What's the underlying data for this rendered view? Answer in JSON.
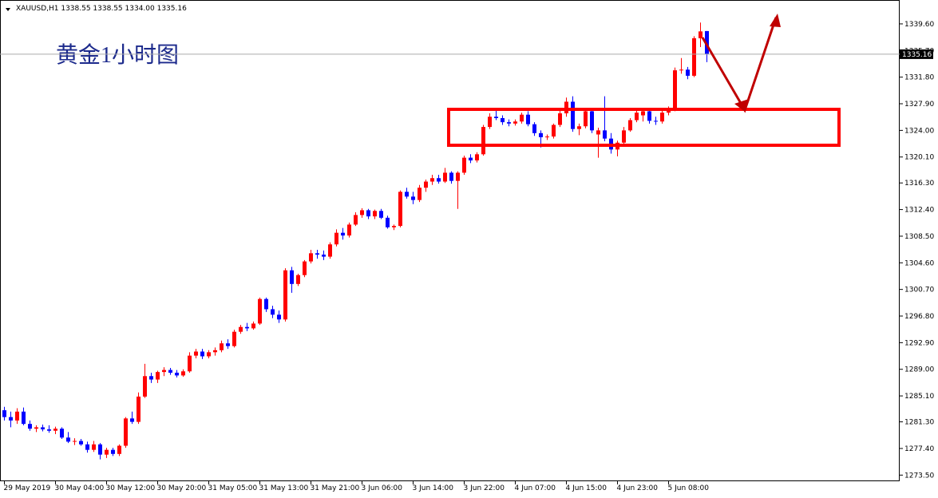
{
  "chart_data": {
    "type": "candlestick",
    "info": "XAUUSD,H1  1338.55 1338.55 1334.00 1335.16",
    "annotation": "黄金1小时图",
    "up_color": "#ff0000",
    "down_color": "#0000ff",
    "last_price": 1335.16,
    "ylim": [
      1272.6,
      1343.1
    ],
    "yticks": [
      {
        "value": 1273.5,
        "label": "1273.50"
      },
      {
        "value": 1277.4,
        "label": "1277.40"
      },
      {
        "value": 1281.3,
        "label": "1281.30"
      },
      {
        "value": 1285.1,
        "label": "1285.10"
      },
      {
        "value": 1289,
        "label": "1289.00"
      },
      {
        "value": 1292.9,
        "label": "1292.90"
      },
      {
        "value": 1296.8,
        "label": "1296.80"
      },
      {
        "value": 1300.7,
        "label": "1300.70"
      },
      {
        "value": 1304.6,
        "label": "1304.60"
      },
      {
        "value": 1308.5,
        "label": "1308.50"
      },
      {
        "value": 1312.4,
        "label": "1312.40"
      },
      {
        "value": 1316.3,
        "label": "1316.30"
      },
      {
        "value": 1320.1,
        "label": "1320.10"
      },
      {
        "value": 1324,
        "label": "1324.00"
      },
      {
        "value": 1327.9,
        "label": "1327.90"
      },
      {
        "value": 1331.8,
        "label": "1331.80"
      },
      {
        "value": 1335.7,
        "label": "1335.70"
      },
      {
        "value": 1339.6,
        "label": "1339.60"
      }
    ],
    "categories": [
      "29 May 2019",
      null,
      null,
      null,
      null,
      null,
      null,
      null,
      "30 May 04:00",
      null,
      null,
      null,
      null,
      null,
      null,
      null,
      "30 May 12:00",
      null,
      null,
      null,
      null,
      null,
      null,
      null,
      "30 May 20:00",
      null,
      null,
      null,
      null,
      null,
      null,
      null,
      "31 May 05:00",
      null,
      null,
      null,
      null,
      null,
      null,
      null,
      "31 May 13:00",
      null,
      null,
      null,
      null,
      null,
      null,
      null,
      "31 May 21:00",
      null,
      null,
      null,
      null,
      null,
      null,
      null,
      "3 Jun 06:00",
      null,
      null,
      null,
      null,
      null,
      null,
      null,
      "3 Jun 14:00",
      null,
      null,
      null,
      null,
      null,
      null,
      null,
      "3 Jun 22:00",
      null,
      null,
      null,
      null,
      null,
      null,
      null,
      "4 Jun 07:00",
      null,
      null,
      null,
      null,
      null,
      null,
      null,
      "4 Jun 15:00",
      null,
      null,
      null,
      null,
      null,
      null,
      null,
      "4 Jun 23:00",
      null,
      null,
      null,
      null,
      null,
      null,
      null,
      "5 Jun 08:00",
      null,
      null,
      null,
      null,
      null,
      null
    ],
    "open": [
      1283.0,
      1282.0,
      1281.5,
      1282.8,
      1281.0,
      1280.3,
      1280.5,
      1280.2,
      1280.0,
      1280.3,
      1279.0,
      1278.4,
      1278.5,
      1278.0,
      1277.2,
      1278.0,
      1276.5,
      1277.2,
      1276.6,
      1277.8,
      1281.8,
      1281.3,
      1285.0,
      1288.0,
      1287.5,
      1288.6,
      1288.9,
      1288.5,
      1288.1,
      1288.7,
      1291.0,
      1291.6,
      1290.9,
      1291.5,
      1291.8,
      1292.8,
      1292.4,
      1294.5,
      1295.2,
      1295.0,
      1295.7,
      1299.3,
      1297.8,
      1297.0,
      1296.3,
      1303.5,
      1301.5,
      1302.8,
      1304.8,
      1306.0,
      1305.8,
      1305.5,
      1307.3,
      1309.0,
      1308.6,
      1310.2,
      1311.6,
      1312.3,
      1311.4,
      1312.2,
      1311.2,
      1309.8,
      1310.0,
      1315.0,
      1314.3,
      1313.8,
      1315.6,
      1316.5,
      1317.0,
      1316.5,
      1317.8,
      1316.6,
      1317.8,
      1320.0,
      1319.6,
      1320.5,
      1324.5,
      1326.0,
      1325.8,
      1325.2,
      1325.0,
      1325.3,
      1326.3,
      1324.9,
      1323.6,
      1323.0,
      1323.1,
      1324.8,
      1326.5,
      1328.2,
      1324.2,
      1324.6,
      1326.8,
      1323.4,
      1324.0,
      1322.8,
      1321.2,
      1322.2,
      1324.0,
      1325.5,
      1326.2,
      1326.8,
      1325.4,
      1325.3,
      1326.6,
      1327.0,
      1332.8,
      1332.9,
      1332.0,
      1337.5,
      1338.55
    ],
    "high": [
      1283.5,
      1282.8,
      1283.3,
      1283.4,
      1281.5,
      1280.8,
      1280.9,
      1280.8,
      1280.6,
      1280.5,
      1279.8,
      1278.9,
      1278.8,
      1278.4,
      1278.5,
      1278.2,
      1277.5,
      1277.5,
      1278.0,
      1282.0,
      1282.8,
      1285.6,
      1289.8,
      1288.5,
      1288.8,
      1289.3,
      1289.2,
      1288.9,
      1289.0,
      1291.5,
      1292.0,
      1292.0,
      1291.8,
      1292.2,
      1293.2,
      1293.4,
      1294.8,
      1295.5,
      1295.8,
      1296.0,
      1299.5,
      1299.5,
      1298.3,
      1297.6,
      1303.8,
      1304.0,
      1303.0,
      1305.0,
      1306.5,
      1306.5,
      1306.4,
      1307.6,
      1309.5,
      1309.7,
      1310.5,
      1312.0,
      1312.6,
      1312.5,
      1312.4,
      1312.5,
      1311.5,
      1310.2,
      1315.2,
      1315.6,
      1315.0,
      1316.0,
      1316.8,
      1317.5,
      1317.5,
      1318.5,
      1318.0,
      1318.0,
      1320.3,
      1320.5,
      1320.8,
      1324.8,
      1326.5,
      1327.3,
      1326.2,
      1325.6,
      1325.6,
      1326.6,
      1326.8,
      1325.2,
      1324.0,
      1323.4,
      1325.0,
      1327.0,
      1328.8,
      1329.0,
      1325.0,
      1327.0,
      1327.2,
      1324.4,
      1329.0,
      1323.6,
      1322.5,
      1324.5,
      1325.8,
      1327.0,
      1327.2,
      1327.0,
      1326.0,
      1327.0,
      1327.5,
      1333.2,
      1334.6,
      1333.3,
      1337.8,
      1339.8,
      1338.55
    ],
    "low": [
      1281.5,
      1280.5,
      1281.0,
      1280.8,
      1280.0,
      1279.8,
      1279.9,
      1279.7,
      1279.5,
      1278.8,
      1278.2,
      1277.9,
      1277.8,
      1276.8,
      1276.9,
      1275.8,
      1276.0,
      1276.3,
      1276.3,
      1277.5,
      1281.0,
      1281.0,
      1284.8,
      1287.0,
      1287.0,
      1288.0,
      1288.2,
      1287.8,
      1287.9,
      1288.5,
      1290.6,
      1290.5,
      1290.6,
      1291.0,
      1291.5,
      1292.0,
      1292.2,
      1294.2,
      1294.6,
      1294.8,
      1295.5,
      1297.4,
      1296.5,
      1295.8,
      1296.0,
      1300.2,
      1301.2,
      1302.5,
      1304.5,
      1305.2,
      1305.0,
      1305.2,
      1307.0,
      1308.0,
      1308.3,
      1310.0,
      1311.2,
      1311.0,
      1311.0,
      1311.0,
      1309.6,
      1309.4,
      1309.8,
      1314.0,
      1313.2,
      1313.5,
      1315.0,
      1316.0,
      1316.2,
      1316.3,
      1316.2,
      1312.5,
      1317.5,
      1319.2,
      1319.3,
      1320.3,
      1324.2,
      1325.5,
      1324.8,
      1324.6,
      1324.7,
      1325.0,
      1324.6,
      1323.2,
      1321.5,
      1322.6,
      1322.8,
      1324.5,
      1326.0,
      1323.8,
      1323.3,
      1324.3,
      1323.6,
      1320.0,
      1322.4,
      1320.6,
      1320.2,
      1321.8,
      1323.8,
      1325.2,
      1325.3,
      1325.0,
      1324.8,
      1325.0,
      1326.2,
      1326.8,
      1332.3,
      1331.5,
      1331.8,
      1336.2,
      1334.0
    ],
    "close": [
      1282.0,
      1281.5,
      1282.8,
      1281.0,
      1280.3,
      1280.5,
      1280.2,
      1280.0,
      1280.3,
      1279.0,
      1278.4,
      1278.5,
      1278.0,
      1277.2,
      1278.0,
      1276.5,
      1277.2,
      1276.6,
      1277.8,
      1281.8,
      1281.3,
      1285.0,
      1288.0,
      1287.5,
      1288.6,
      1288.9,
      1288.5,
      1288.1,
      1288.7,
      1291.0,
      1291.6,
      1290.9,
      1291.5,
      1291.8,
      1292.8,
      1292.4,
      1294.5,
      1295.2,
      1295.0,
      1295.7,
      1299.3,
      1297.8,
      1297.0,
      1296.3,
      1303.5,
      1301.5,
      1302.8,
      1304.8,
      1306.0,
      1305.8,
      1305.5,
      1307.3,
      1309.0,
      1308.6,
      1310.2,
      1311.6,
      1312.3,
      1311.4,
      1312.2,
      1311.2,
      1309.8,
      1310.0,
      1315.0,
      1314.3,
      1313.8,
      1315.6,
      1316.5,
      1317.0,
      1316.5,
      1317.8,
      1316.6,
      1317.8,
      1320.0,
      1319.6,
      1320.5,
      1324.5,
      1326.0,
      1325.8,
      1325.2,
      1325.0,
      1325.3,
      1326.3,
      1324.9,
      1323.6,
      1323.0,
      1323.1,
      1324.8,
      1326.5,
      1328.2,
      1324.2,
      1324.6,
      1326.8,
      1324.0,
      1324.0,
      1322.8,
      1321.2,
      1322.2,
      1324.0,
      1325.5,
      1326.6,
      1326.8,
      1325.4,
      1325.3,
      1326.6,
      1327.0,
      1332.8,
      1332.9,
      1332.0,
      1337.5,
      1338.5,
      1335.16
    ]
  }
}
